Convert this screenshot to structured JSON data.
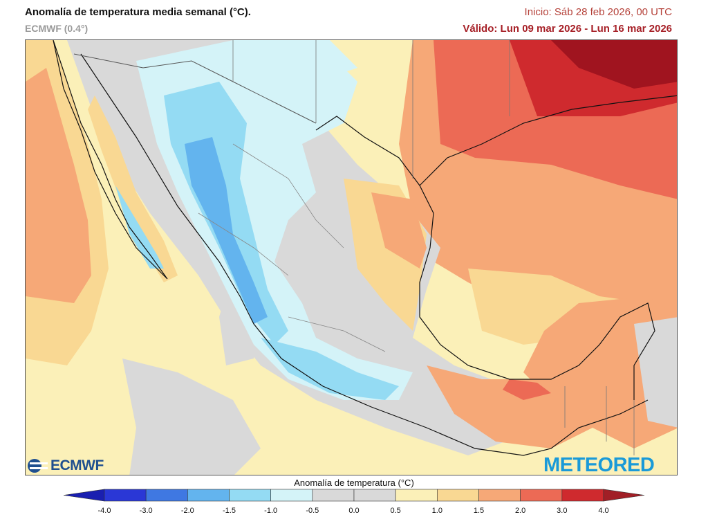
{
  "header": {
    "title": "Anomalía de temperatura media semanal (°C).",
    "model": "ECMWF (0.4°)",
    "init": "Inicio: Sáb 28 feb 2026, 00 UTC",
    "valid": "Válido: Lun 09 mar 2026 - Lun 16 mar 2026"
  },
  "logos": {
    "left_text": "ECMWF",
    "right_text": "METEORED"
  },
  "legend": {
    "title": "Anomalía de temperatura (°C)",
    "ticks": [
      "-4.0",
      "-3.0",
      "-2.0",
      "-1.5",
      "-1.0",
      "-0.5",
      "0.0",
      "0.5",
      "1.0",
      "1.5",
      "2.0",
      "3.0",
      "4.0"
    ],
    "colors": [
      "#2a37d6",
      "#3f78e2",
      "#63b4ee",
      "#94dbf3",
      "#d4f3f8",
      "#d9d9d9",
      "#d9d9d9",
      "#fbf0b8",
      "#f9d893",
      "#f6a877",
      "#ec6a55",
      "#cf2a2e"
    ],
    "arrow_low_color": "#1a1fb0",
    "arrow_high_color": "#a11f26"
  },
  "colors": {
    "sea_default": "#fbf0b8",
    "warm": "#f6a877",
    "hot": "#ec6a55",
    "very_hot": "#cf2a2e",
    "extreme": "#a0141f",
    "cool": "#d4f3f8",
    "cold": "#94dbf3",
    "colder": "#63b4ee",
    "neutral": "#d9d9d9"
  }
}
